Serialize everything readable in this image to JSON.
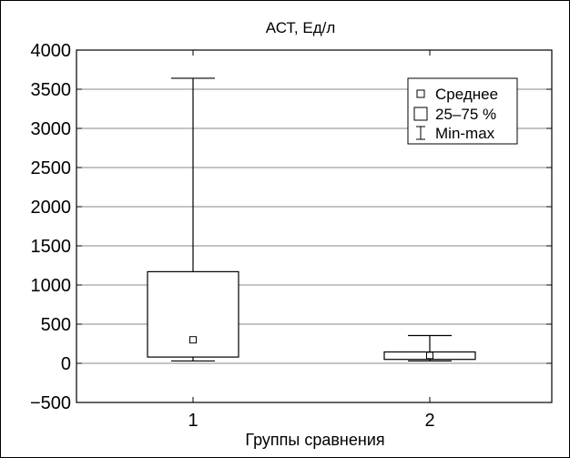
{
  "chart_data": {
    "type": "boxplot",
    "title": "АСТ, Ед/л",
    "xlabel": "Группы сравнения",
    "ylabel": "",
    "ylim": [
      -500,
      4000
    ],
    "yticks": [
      -500,
      0,
      500,
      1000,
      1500,
      2000,
      2500,
      3000,
      3500,
      4000
    ],
    "ytick_labels": [
      "−500",
      "0",
      "500",
      "1000",
      "1500",
      "2000",
      "2500",
      "3000",
      "3500",
      "4000"
    ],
    "categories": [
      "1",
      "2"
    ],
    "grid": true,
    "legend_position": "top-right",
    "legend": [
      {
        "symbol": "square-marker",
        "label": "Среднее"
      },
      {
        "symbol": "box",
        "label": "25–75 %"
      },
      {
        "symbol": "whisker",
        "label": "Min-max"
      }
    ],
    "groups": [
      {
        "category": "1",
        "min": 30,
        "q1": 80,
        "mean": 300,
        "q3": 1170,
        "max": 3640
      },
      {
        "category": "2",
        "min": 30,
        "q1": 50,
        "mean": 100,
        "q3": 145,
        "max": 355
      }
    ]
  }
}
